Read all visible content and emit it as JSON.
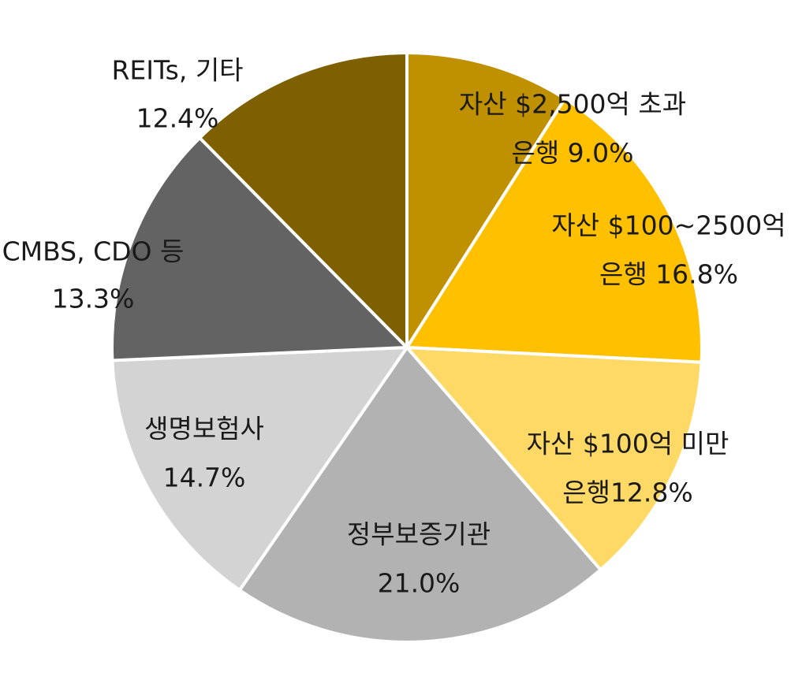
{
  "chart_data": {
    "type": "pie",
    "title": "",
    "start_angle_deg": 0,
    "direction": "clockwise",
    "slices": [
      {
        "label_line1": "자산 $2,500억 초과",
        "label_line2": "은행 9.0%",
        "value": 9.0,
        "color": "#BF9000"
      },
      {
        "label_line1": "자산 $100~2500억",
        "label_line2": "은행 16.8%",
        "value": 16.8,
        "color": "#FFC000"
      },
      {
        "label_line1": "자산 $100억 미만",
        "label_line2": "은행12.8%",
        "value": 12.8,
        "color": "#FFD966"
      },
      {
        "label_line1": "정부보증기관",
        "label_line2": "21.0%",
        "value": 21.0,
        "color": "#B2B2B2"
      },
      {
        "label_line1": "생명보험사",
        "label_line2": "14.7%",
        "value": 14.7,
        "color": "#D3D3D3"
      },
      {
        "label_line1": "CMBS, CDO 등",
        "label_line2": "13.3%",
        "value": 13.3,
        "color": "#636363"
      },
      {
        "label_line1": "REITs, 기타",
        "label_line2": "12.4%",
        "value": 12.4,
        "color": "#7F6000"
      }
    ]
  }
}
